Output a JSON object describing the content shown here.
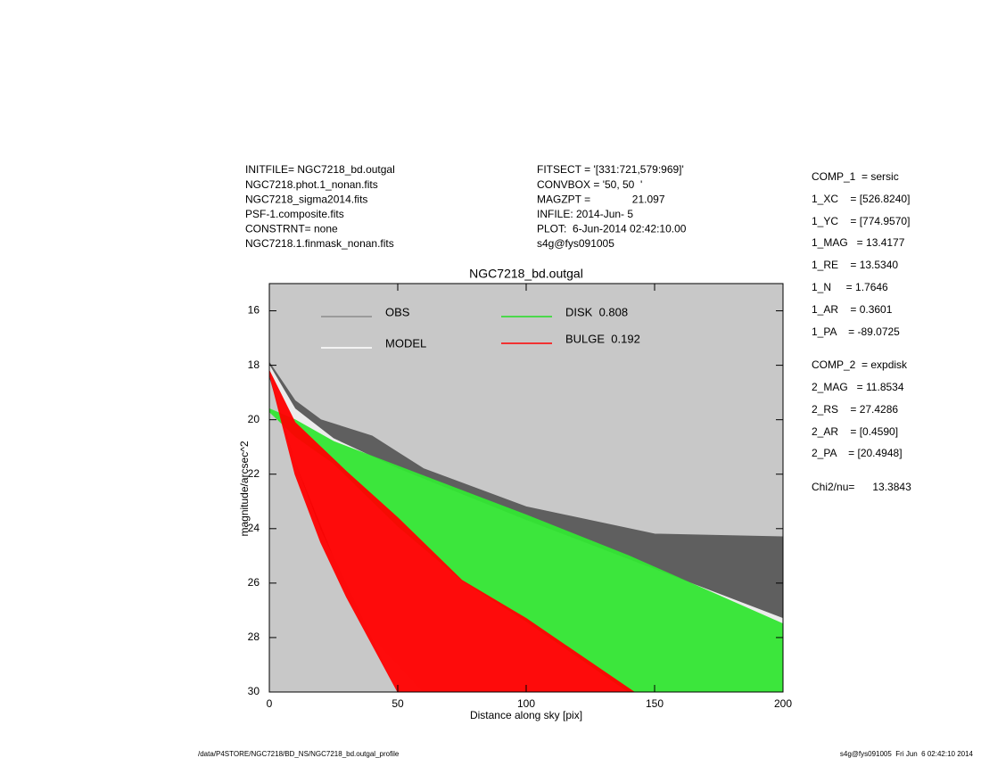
{
  "chart_data": {
    "type": "band",
    "title": "NGC7218_bd.outgal",
    "xlabel": "Distance along sky [pix]",
    "ylabel": "magnitude/arcsec^2",
    "xlim": [
      0,
      200
    ],
    "ylim": [
      30,
      15
    ],
    "xticks": [
      0,
      50,
      100,
      150,
      200
    ],
    "yticks": [
      16,
      18,
      20,
      22,
      24,
      26,
      28,
      30
    ],
    "background": "#c8c8c8",
    "series": [
      {
        "name": "OBS",
        "color": "#5a5a5a",
        "legend_color": "#8c8c8c",
        "x": [
          0,
          10,
          20,
          40,
          60,
          100,
          150,
          200
        ],
        "values_bright": [
          17.9,
          19.3,
          20.0,
          20.6,
          21.8,
          23.2,
          24.2,
          24.3
        ],
        "values_faint": [
          18.4,
          21.5,
          24.0,
          28.0,
          30,
          30,
          30,
          30
        ]
      },
      {
        "name": "MODEL",
        "color": "#f4f4f4",
        "legend_color": "#ffffff",
        "x": [
          0,
          10,
          25,
          50,
          100,
          150,
          200
        ],
        "values_bright": [
          18.0,
          19.6,
          20.7,
          21.8,
          23.7,
          25.5,
          27.3
        ],
        "values_faint": [
          18.3,
          21.5,
          25.0,
          30,
          30,
          30,
          30
        ]
      },
      {
        "name": "DISK  0.808",
        "color": "#33e633",
        "legend_color": "#22dd22",
        "x": [
          0,
          10,
          25,
          50,
          75,
          100,
          140,
          200
        ],
        "values_bright": [
          19.6,
          20.0,
          20.8,
          21.7,
          22.6,
          23.5,
          25.0,
          27.5
        ],
        "values_faint": [
          19.7,
          20.6,
          21.6,
          23.9,
          25.9,
          27.4,
          30,
          30
        ]
      },
      {
        "name": "BULGE  0.192",
        "color": "#ff0000",
        "legend_color": "#ff0000",
        "x": [
          0,
          10,
          20,
          30,
          50,
          75,
          100,
          142
        ],
        "values_bright": [
          18.2,
          20.1,
          21.0,
          21.9,
          23.6,
          25.9,
          27.3,
          30
        ],
        "values_faint": [
          18.3,
          22.0,
          24.5,
          26.5,
          30,
          30,
          30,
          30
        ]
      }
    ]
  },
  "header_left": [
    "INITFILE= NGC7218_bd.outgal",
    "NGC7218.phot.1_nonan.fits",
    "NGC7218_sigma2014.fits",
    "PSF-1.composite.fits",
    "CONSTRNT= none",
    "NGC7218.1.finmask_nonan.fits"
  ],
  "header_middle": [
    "FITSECT = '[331:721,579:969]'",
    "CONVBOX = '50, 50  '",
    "MAGZPT =              21.097",
    "INFILE: 2014-Jun- 5",
    "PLOT:  6-Jun-2014 02:42:10.00",
    "s4g@fys091005"
  ],
  "parameters": [
    "COMP_1  = sersic",
    "1_XC    = [526.8240]",
    "1_YC    = [774.9570]",
    "1_MAG   = 13.4177",
    "1_RE    = 13.5340",
    "1_N     = 1.7646",
    "1_AR    = 0.3601",
    "1_PA    = -89.0725",
    "COMP_2  = expdisk",
    "2_MAG   = 11.8534",
    "2_RS    = 27.4286",
    "2_AR    = [0.4590]",
    "2_PA    = [20.4948]",
    "Chi2/nu=      13.3843"
  ],
  "footer_left": "/data/P4STORE/NGC7218/BD_NS/NGC7218_bd.outgal_profile",
  "footer_right": "s4g@fys091005  Fri Jun  6 02:42:10 2014"
}
